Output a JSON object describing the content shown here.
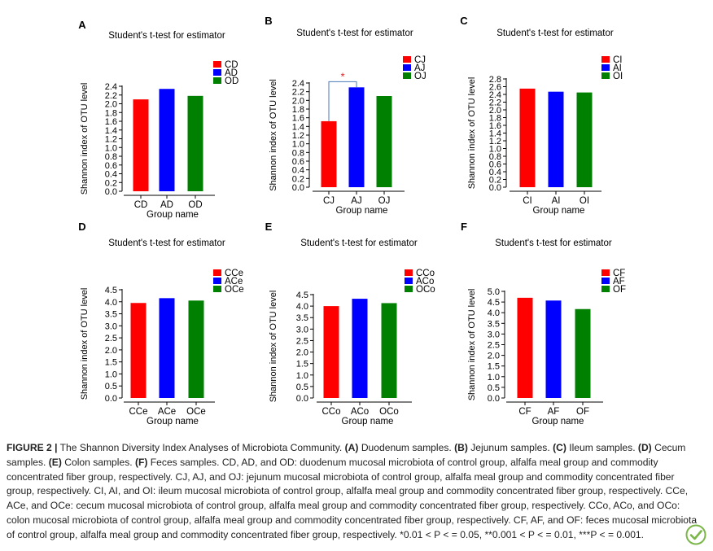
{
  "chart_data": [
    {
      "type": "bar",
      "panel": "A",
      "title": "Student's t-test for estimator",
      "xlabel": "Group name",
      "ylabel": "Shannon index of OTU level",
      "categories": [
        "CD",
        "AD",
        "OD"
      ],
      "values": [
        2.1,
        2.34,
        2.18
      ],
      "colors": [
        "#ff0000",
        "#0000ff",
        "#008000"
      ],
      "ylim": [
        0,
        2.4
      ],
      "yticks": [
        "0.0",
        "0.2",
        "0.4",
        "0.6",
        "0.8",
        "1.0",
        "1.2",
        "1.4",
        "1.6",
        "1.8",
        "2.0",
        "2.2",
        "2.4"
      ],
      "legend": [
        "CD",
        "AD",
        "OD"
      ],
      "legend_position": "top-right",
      "grid": false
    },
    {
      "type": "bar",
      "panel": "B",
      "title": "Student's t-test for estimator",
      "xlabel": "Group name",
      "ylabel": "Shannon index of OTU level",
      "categories": [
        "CJ",
        "AJ",
        "OJ"
      ],
      "values": [
        1.52,
        2.3,
        2.1
      ],
      "colors": [
        "#ff0000",
        "#0000ff",
        "#008000"
      ],
      "ylim": [
        0,
        2.4
      ],
      "yticks": [
        "0.0",
        "0.2",
        "0.4",
        "0.6",
        "0.8",
        "1.0",
        "1.2",
        "1.4",
        "1.6",
        "1.8",
        "2.0",
        "2.2",
        "2.4"
      ],
      "legend": [
        "CJ",
        "AJ",
        "OJ"
      ],
      "legend_position": "top-right",
      "grid": false,
      "significance": {
        "between": [
          "CJ",
          "AJ"
        ],
        "label": "*"
      }
    },
    {
      "type": "bar",
      "panel": "C",
      "title": "Student's t-test for estimator",
      "xlabel": "Group name",
      "ylabel": "Shannon index of OTU level",
      "categories": [
        "CI",
        "AI",
        "OI"
      ],
      "values": [
        2.55,
        2.47,
        2.45
      ],
      "colors": [
        "#ff0000",
        "#0000ff",
        "#008000"
      ],
      "ylim": [
        0,
        2.8
      ],
      "yticks": [
        "0.0",
        "0.2",
        "0.4",
        "0.6",
        "0.8",
        "1.0",
        "1.2",
        "1.4",
        "1.6",
        "1.8",
        "2.0",
        "2.2",
        "2.4",
        "2.6",
        "2.8"
      ],
      "legend": [
        "CI",
        "AI",
        "OI"
      ],
      "legend_position": "top-right",
      "grid": false
    },
    {
      "type": "bar",
      "panel": "D",
      "title": "Student's t-test for estimator",
      "xlabel": "Group name",
      "ylabel": "Shannon index of OTU level",
      "categories": [
        "CCe",
        "ACe",
        "OCe"
      ],
      "values": [
        3.95,
        4.15,
        4.05
      ],
      "colors": [
        "#ff0000",
        "#0000ff",
        "#008000"
      ],
      "ylim": [
        0,
        4.5
      ],
      "yticks": [
        "0.0",
        "0.5",
        "1.0",
        "1.5",
        "2.0",
        "2.5",
        "3.0",
        "3.5",
        "4.0",
        "4.5"
      ],
      "legend": [
        "CCe",
        "ACe",
        "OCe"
      ],
      "legend_position": "top-right",
      "grid": false
    },
    {
      "type": "bar",
      "panel": "E",
      "title": "Student's t-test for estimator",
      "xlabel": "Group name",
      "ylabel": "Shannon index of OTU level",
      "categories": [
        "CCo",
        "ACo",
        "OCo"
      ],
      "values": [
        4.0,
        4.32,
        4.13
      ],
      "colors": [
        "#ff0000",
        "#0000ff",
        "#008000"
      ],
      "ylim": [
        0,
        4.5
      ],
      "yticks": [
        "0.0",
        "0.5",
        "1.0",
        "1.5",
        "2.0",
        "2.5",
        "3.0",
        "3.5",
        "4.0",
        "4.5"
      ],
      "legend": [
        "CCo",
        "ACo",
        "OCo"
      ],
      "legend_position": "top-right",
      "grid": false
    },
    {
      "type": "bar",
      "panel": "F",
      "title": "Student's t-test for estimator",
      "xlabel": "Group name",
      "ylabel": "Shannon index of OTU level",
      "categories": [
        "CF",
        "AF",
        "OF"
      ],
      "values": [
        4.7,
        4.57,
        4.17
      ],
      "colors": [
        "#ff0000",
        "#0000ff",
        "#008000"
      ],
      "ylim": [
        0,
        5.0
      ],
      "yticks": [
        "0.0",
        "0.5",
        "1.0",
        "1.5",
        "2.0",
        "2.5",
        "3.0",
        "3.5",
        "4.0",
        "4.5",
        "5.0"
      ],
      "legend": [
        "CF",
        "AF",
        "OF"
      ],
      "legend_position": "top-right",
      "grid": false
    }
  ],
  "caption": {
    "figure_label": "FIGURE 2 |",
    "intro": " The Shannon Diversity Index Analyses of Microbiota Community. ",
    "p1_label": "(A)",
    "p1_text": " Duodenum samples. ",
    "p2_label": "(B)",
    "p2_text": " Jejunum samples. ",
    "p3_label": "(C)",
    "p3_text": " Ileum samples. ",
    "p4_label": "(D)",
    "p4_text": " Cecum samples. ",
    "p5_label": "(E)",
    "p5_text": " Colon samples. ",
    "p6_label": "(F)",
    "p6_text": " Feces samples. CD, AD, and OD: duodenum mucosal microbiota of control group, alfalfa meal group and commodity concentrated fiber group, respectively. CJ, AJ, and OJ: jejunum mucosal microbiota of control group, alfalfa meal group and commodity concentrated fiber group, respectively. CI, AI, and OI: ileum mucosal microbiota of control group, alfalfa meal group and commodity concentrated fiber group, respectively. CCe, ACe, and OCe: cecum mucosal microbiota of control group, alfalfa meal group and commodity concentrated fiber group, respectively. CCo, ACo, and OCo: colon mucosal microbiota of control group, alfalfa meal group and commodity concentrated fiber group, respectively. CF, AF, and OF: feces mucosal microbiota of control group, alfalfa meal group and commodity concentrated fiber group, respectively. *0.01 < P < = 0.05, **0.001 < P < = 0.01, ***P < = 0.001."
  },
  "logo_icon": "frontiers-check-logo",
  "colors": {
    "control": "#ff0000",
    "alfalfa": "#0000ff",
    "commodity": "#008000",
    "significance": "#4a7ab7"
  }
}
